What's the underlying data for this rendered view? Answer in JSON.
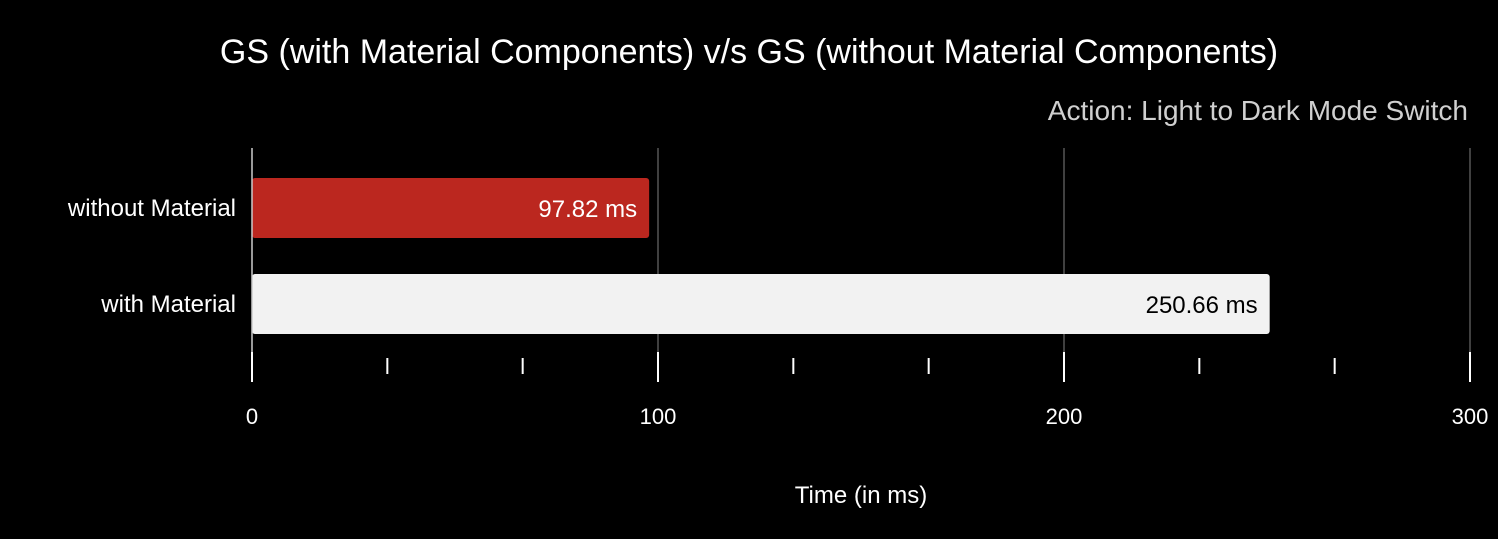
{
  "chart_data": {
    "type": "bar",
    "orientation": "horizontal",
    "title": "GS (with Material Components) v/s GS (without Material Components)",
    "subtitle": "Action: Light to Dark Mode Switch",
    "xlabel": "Time (in ms)",
    "ylabel": "",
    "xlim": [
      0,
      300
    ],
    "x_ticks": [
      0,
      100,
      200,
      300
    ],
    "x_minor_tick_count": 2,
    "grid": true,
    "categories": [
      "without Material",
      "with Material"
    ],
    "values": [
      97.82,
      250.66
    ],
    "data_labels": [
      "97.82 ms",
      "250.66 ms"
    ],
    "colors": [
      "#bb271f",
      "#f2f2f2"
    ],
    "label_colors": [
      "#ffffff",
      "#000000"
    ],
    "background": "#000000",
    "text_color": "#ffffff",
    "subtitle_color": "#d0d0d0",
    "grid_color": "#555555"
  }
}
